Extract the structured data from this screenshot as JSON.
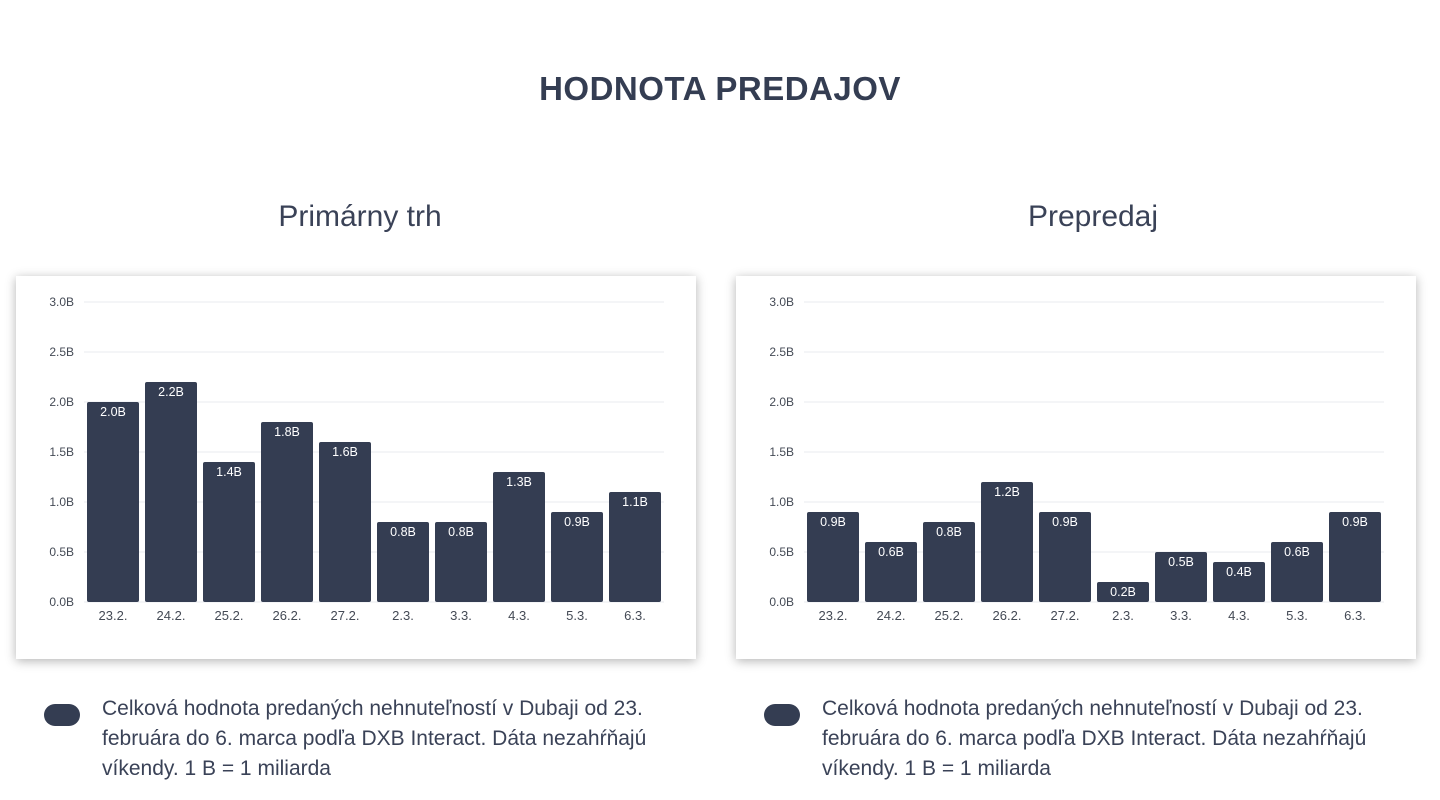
{
  "title": "HODNOTA PREDAJOV",
  "colors": {
    "bar": "#343d52",
    "grid": "#e9ebef",
    "axis_text": "#444a55",
    "label_text": "#ffffff"
  },
  "legend_text": "Celková hodnota predaných nehnuteľností v Dubaji od 23. februára do 6. marca podľa DXB Interact. Dáta nezahŕňajú víkendy. 1 B = 1 miliarda",
  "chart_data": [
    {
      "type": "bar",
      "title": "Primárny trh",
      "categories": [
        "23.2.",
        "24.2.",
        "25.2.",
        "26.2.",
        "27.2.",
        "2.3.",
        "3.3.",
        "4.3.",
        "5.3.",
        "6.3."
      ],
      "values": [
        2.0,
        2.2,
        1.4,
        1.8,
        1.6,
        0.8,
        0.8,
        1.3,
        0.9,
        1.1
      ],
      "value_labels": [
        "2.0B",
        "2.2B",
        "1.4B",
        "1.8B",
        "1.6B",
        "0.8B",
        "0.8B",
        "1.3B",
        "0.9B",
        "1.1B"
      ],
      "yticks": [
        "0.0B",
        "0.5B",
        "1.0B",
        "1.5B",
        "2.0B",
        "2.5B",
        "3.0B"
      ],
      "ylim": [
        0,
        3.0
      ],
      "grid": true
    },
    {
      "type": "bar",
      "title": "Prepredaj",
      "categories": [
        "23.2.",
        "24.2.",
        "25.2.",
        "26.2.",
        "27.2.",
        "2.3.",
        "3.3.",
        "4.3.",
        "5.3.",
        "6.3."
      ],
      "values": [
        0.9,
        0.6,
        0.8,
        1.2,
        0.9,
        0.2,
        0.5,
        0.4,
        0.6,
        0.9
      ],
      "value_labels": [
        "0.9B",
        "0.6B",
        "0.8B",
        "1.2B",
        "0.9B",
        "0.2B",
        "0.5B",
        "0.4B",
        "0.6B",
        "0.9B"
      ],
      "yticks": [
        "0.0B",
        "0.5B",
        "1.0B",
        "1.5B",
        "2.0B",
        "2.5B",
        "3.0B"
      ],
      "ylim": [
        0,
        3.0
      ],
      "grid": true
    }
  ]
}
